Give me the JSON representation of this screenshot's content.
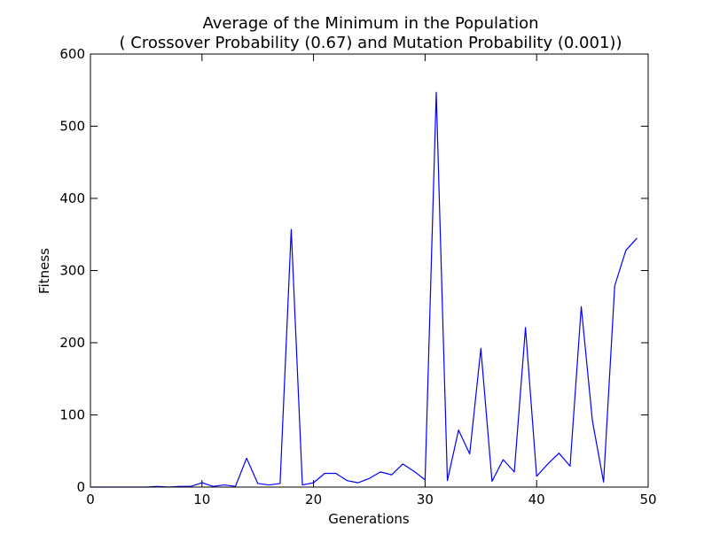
{
  "chart_data": {
    "type": "line",
    "title": "Average of the Minimum in the Population",
    "subtitle": "( Crossover Probability (0.67) and Mutation Probability (0.001))",
    "xlabel": "Generations",
    "ylabel": "Fitness",
    "xlim": [
      0,
      50
    ],
    "ylim": [
      0,
      600
    ],
    "xticks": [
      0,
      10,
      20,
      30,
      40,
      50
    ],
    "yticks": [
      0,
      100,
      200,
      300,
      400,
      500,
      600
    ],
    "grid": false,
    "x": [
      0,
      1,
      2,
      3,
      4,
      5,
      6,
      7,
      8,
      9,
      10,
      11,
      12,
      13,
      14,
      15,
      16,
      17,
      18,
      19,
      20,
      21,
      22,
      23,
      24,
      25,
      26,
      27,
      28,
      29,
      30,
      31,
      32,
      33,
      34,
      35,
      36,
      37,
      38,
      39,
      40,
      41,
      42,
      43,
      44,
      45,
      46,
      47,
      48,
      49
    ],
    "series": [
      {
        "color": "#0000ff",
        "values": [
          0,
          0,
          0,
          0,
          0,
          0,
          1,
          0,
          1,
          1,
          6,
          1,
          3,
          1,
          40,
          5,
          3,
          5,
          357,
          3,
          6,
          19,
          19,
          9,
          6,
          12,
          21,
          17,
          32,
          22,
          10,
          547,
          9,
          79,
          46,
          192,
          8,
          38,
          21,
          221,
          15,
          32,
          47,
          29,
          250,
          92,
          7,
          279,
          328,
          345
        ]
      }
    ]
  }
}
